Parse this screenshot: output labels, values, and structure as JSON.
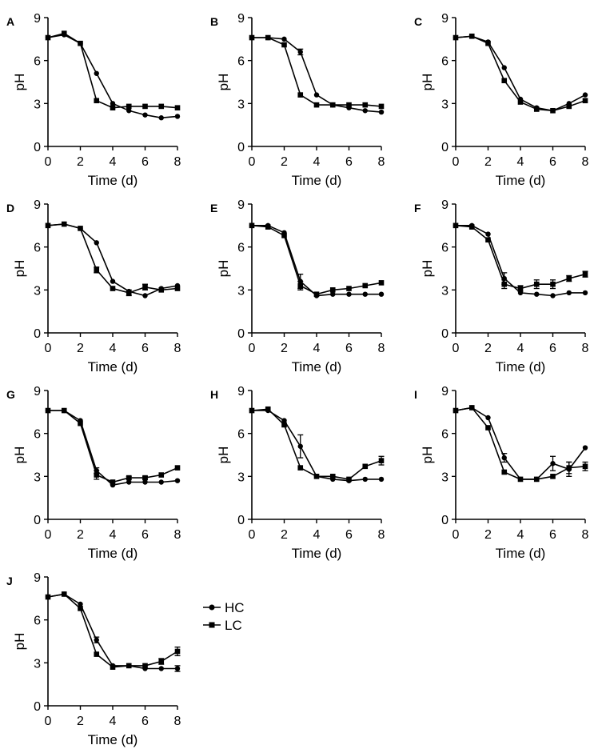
{
  "figure": {
    "legend": [
      {
        "label": "HC",
        "marker": "circle"
      },
      {
        "label": "LC",
        "marker": "square"
      }
    ],
    "line_color": "#000000"
  },
  "chart_data": [
    {
      "panel": "A",
      "type": "line",
      "xlabel": "Time (d)",
      "ylabel": "pH",
      "xlim": [
        0,
        8
      ],
      "ylim": [
        0,
        9
      ],
      "xticks": [
        "0",
        "2",
        "4",
        "6",
        "8"
      ],
      "yticks": [
        "0",
        "3",
        "6",
        "9"
      ],
      "series": [
        {
          "name": "HC",
          "x": [
            0,
            1,
            2,
            3,
            4,
            5,
            6,
            7,
            8
          ],
          "y": [
            7.6,
            7.8,
            7.2,
            5.1,
            3.0,
            2.5,
            2.2,
            2.0,
            2.1
          ],
          "err": [
            0,
            0,
            0,
            0,
            0,
            0,
            0,
            0,
            0
          ]
        },
        {
          "name": "LC",
          "x": [
            0,
            1,
            2,
            3,
            4,
            5,
            6,
            7,
            8
          ],
          "y": [
            7.6,
            7.9,
            7.2,
            3.2,
            2.7,
            2.8,
            2.8,
            2.8,
            2.7
          ],
          "err": [
            0,
            0,
            0,
            0,
            0,
            0,
            0,
            0,
            0
          ]
        }
      ]
    },
    {
      "panel": "B",
      "type": "line",
      "xlabel": "Time (d)",
      "ylabel": "pH",
      "xlim": [
        0,
        8
      ],
      "ylim": [
        0,
        9
      ],
      "xticks": [
        "0",
        "2",
        "4",
        "6",
        "8"
      ],
      "yticks": [
        "0",
        "3",
        "6",
        "9"
      ],
      "series": [
        {
          "name": "HC",
          "x": [
            0,
            1,
            2,
            3,
            4,
            5,
            6,
            7,
            8
          ],
          "y": [
            7.6,
            7.6,
            7.5,
            6.6,
            3.6,
            2.9,
            2.7,
            2.5,
            2.4
          ],
          "err": [
            0,
            0,
            0,
            0.2,
            0,
            0,
            0,
            0,
            0
          ]
        },
        {
          "name": "LC",
          "x": [
            0,
            1,
            2,
            3,
            4,
            5,
            6,
            7,
            8
          ],
          "y": [
            7.6,
            7.6,
            7.1,
            3.6,
            2.9,
            2.9,
            2.9,
            2.9,
            2.8
          ],
          "err": [
            0,
            0,
            0,
            0,
            0,
            0,
            0,
            0,
            0
          ]
        }
      ]
    },
    {
      "panel": "C",
      "type": "line",
      "xlabel": "Time (d)",
      "ylabel": "pH",
      "xlim": [
        0,
        8
      ],
      "ylim": [
        0,
        9
      ],
      "xticks": [
        "0",
        "2",
        "4",
        "6",
        "8"
      ],
      "yticks": [
        "0",
        "3",
        "6",
        "9"
      ],
      "series": [
        {
          "name": "HC",
          "x": [
            0,
            1,
            2,
            3,
            4,
            5,
            6,
            7,
            8
          ],
          "y": [
            7.6,
            7.7,
            7.3,
            5.5,
            3.3,
            2.7,
            2.5,
            3.0,
            3.6
          ],
          "err": [
            0,
            0,
            0,
            0,
            0,
            0,
            0,
            0,
            0
          ]
        },
        {
          "name": "LC",
          "x": [
            0,
            1,
            2,
            3,
            4,
            5,
            6,
            7,
            8
          ],
          "y": [
            7.6,
            7.7,
            7.2,
            4.6,
            3.1,
            2.6,
            2.5,
            2.8,
            3.2
          ],
          "err": [
            0,
            0,
            0,
            0,
            0,
            0,
            0,
            0,
            0
          ]
        }
      ]
    },
    {
      "panel": "D",
      "type": "line",
      "xlabel": "Time (d)",
      "ylabel": "pH",
      "xlim": [
        0,
        8
      ],
      "ylim": [
        0,
        9
      ],
      "xticks": [
        "0",
        "2",
        "4",
        "6",
        "8"
      ],
      "yticks": [
        "0",
        "3",
        "6",
        "9"
      ],
      "series": [
        {
          "name": "HC",
          "x": [
            0,
            1,
            2,
            3,
            4,
            5,
            6,
            7,
            8
          ],
          "y": [
            7.5,
            7.6,
            7.3,
            6.3,
            3.6,
            2.9,
            2.6,
            3.1,
            3.3
          ],
          "err": [
            0,
            0,
            0,
            0,
            0,
            0,
            0,
            0,
            0
          ]
        },
        {
          "name": "LC",
          "x": [
            0,
            1,
            2,
            3,
            4,
            5,
            6,
            7,
            8
          ],
          "y": [
            7.5,
            7.6,
            7.3,
            4.4,
            3.1,
            2.8,
            3.2,
            3.0,
            3.1
          ],
          "err": [
            0,
            0,
            0,
            0.2,
            0,
            0.2,
            0.2,
            0,
            0
          ]
        }
      ]
    },
    {
      "panel": "E",
      "type": "line",
      "xlabel": "Time (d)",
      "ylabel": "pH",
      "xlim": [
        0,
        8
      ],
      "ylim": [
        0,
        9
      ],
      "xticks": [
        "0",
        "2",
        "4",
        "6",
        "8"
      ],
      "yticks": [
        "0",
        "3",
        "6",
        "9"
      ],
      "series": [
        {
          "name": "HC",
          "x": [
            0,
            1,
            2,
            3,
            4,
            5,
            6,
            7,
            8
          ],
          "y": [
            7.5,
            7.5,
            7.0,
            3.6,
            2.6,
            2.7,
            2.7,
            2.7,
            2.7
          ],
          "err": [
            0,
            0,
            0,
            0.5,
            0,
            0,
            0,
            0,
            0
          ]
        },
        {
          "name": "LC",
          "x": [
            0,
            1,
            2,
            3,
            4,
            5,
            6,
            7,
            8
          ],
          "y": [
            7.5,
            7.4,
            6.8,
            3.3,
            2.7,
            3.0,
            3.1,
            3.3,
            3.5
          ],
          "err": [
            0,
            0,
            0,
            0.3,
            0,
            0,
            0,
            0,
            0
          ]
        }
      ]
    },
    {
      "panel": "F",
      "type": "line",
      "xlabel": "Time (d)",
      "ylabel": "pH",
      "xlim": [
        0,
        8
      ],
      "ylim": [
        0,
        9
      ],
      "xticks": [
        "0",
        "2",
        "4",
        "6",
        "8"
      ],
      "yticks": [
        "0",
        "3",
        "6",
        "9"
      ],
      "series": [
        {
          "name": "HC",
          "x": [
            0,
            1,
            2,
            3,
            4,
            5,
            6,
            7,
            8
          ],
          "y": [
            7.5,
            7.5,
            6.9,
            3.8,
            2.8,
            2.7,
            2.6,
            2.8,
            2.8
          ],
          "err": [
            0,
            0,
            0,
            0.4,
            0,
            0,
            0,
            0,
            0
          ]
        },
        {
          "name": "LC",
          "x": [
            0,
            1,
            2,
            3,
            4,
            5,
            6,
            7,
            8
          ],
          "y": [
            7.5,
            7.4,
            6.5,
            3.4,
            3.1,
            3.4,
            3.4,
            3.8,
            4.1
          ],
          "err": [
            0,
            0,
            0,
            0.3,
            0.2,
            0.3,
            0.3,
            0.2,
            0.2
          ]
        }
      ]
    },
    {
      "panel": "G",
      "type": "line",
      "xlabel": "Time (d)",
      "ylabel": "pH",
      "xlim": [
        0,
        8
      ],
      "ylim": [
        0,
        9
      ],
      "xticks": [
        "0",
        "2",
        "4",
        "6",
        "8"
      ],
      "yticks": [
        "0",
        "3",
        "6",
        "9"
      ],
      "series": [
        {
          "name": "HC",
          "x": [
            0,
            1,
            2,
            3,
            4,
            5,
            6,
            7,
            8
          ],
          "y": [
            7.6,
            7.6,
            6.9,
            3.4,
            2.4,
            2.6,
            2.6,
            2.6,
            2.7
          ],
          "err": [
            0,
            0,
            0,
            0.2,
            0,
            0,
            0,
            0,
            0
          ]
        },
        {
          "name": "LC",
          "x": [
            0,
            1,
            2,
            3,
            4,
            5,
            6,
            7,
            8
          ],
          "y": [
            7.6,
            7.6,
            6.7,
            3.1,
            2.6,
            2.9,
            2.9,
            3.1,
            3.6
          ],
          "err": [
            0,
            0,
            0,
            0.3,
            0,
            0.1,
            0.1,
            0,
            0
          ]
        }
      ]
    },
    {
      "panel": "H",
      "type": "line",
      "xlabel": "Time (d)",
      "ylabel": "pH",
      "xlim": [
        0,
        8
      ],
      "ylim": [
        0,
        9
      ],
      "xticks": [
        "0",
        "2",
        "4",
        "6",
        "8"
      ],
      "yticks": [
        "0",
        "3",
        "6",
        "9"
      ],
      "series": [
        {
          "name": "HC",
          "x": [
            0,
            1,
            2,
            3,
            4,
            5,
            6,
            7,
            8
          ],
          "y": [
            7.6,
            7.6,
            6.9,
            5.1,
            3.0,
            2.8,
            2.7,
            2.8,
            2.8
          ],
          "err": [
            0,
            0,
            0,
            0.8,
            0,
            0,
            0,
            0,
            0
          ]
        },
        {
          "name": "LC",
          "x": [
            0,
            1,
            2,
            3,
            4,
            5,
            6,
            7,
            8
          ],
          "y": [
            7.6,
            7.7,
            6.6,
            3.6,
            3.0,
            3.0,
            2.8,
            3.7,
            4.1
          ],
          "err": [
            0,
            0,
            0,
            0,
            0,
            0,
            0,
            0,
            0.3
          ]
        }
      ]
    },
    {
      "panel": "I",
      "type": "line",
      "xlabel": "Time (d)",
      "ylabel": "pH",
      "xlim": [
        0,
        8
      ],
      "ylim": [
        0,
        9
      ],
      "xticks": [
        "0",
        "2",
        "4",
        "6",
        "8"
      ],
      "yticks": [
        "0",
        "3",
        "6",
        "9"
      ],
      "series": [
        {
          "name": "HC",
          "x": [
            0,
            1,
            2,
            3,
            4,
            5,
            6,
            7,
            8
          ],
          "y": [
            7.6,
            7.8,
            7.1,
            4.3,
            2.8,
            2.8,
            3.9,
            3.5,
            5.0
          ],
          "err": [
            0,
            0,
            0,
            0.3,
            0,
            0,
            0.5,
            0.5,
            0
          ]
        },
        {
          "name": "LC",
          "x": [
            0,
            1,
            2,
            3,
            4,
            5,
            6,
            7,
            8
          ],
          "y": [
            7.6,
            7.8,
            6.4,
            3.3,
            2.8,
            2.8,
            3.0,
            3.6,
            3.7
          ],
          "err": [
            0,
            0,
            0,
            0,
            0,
            0,
            0,
            0.4,
            0.3
          ]
        }
      ]
    },
    {
      "panel": "J",
      "type": "line",
      "xlabel": "Time (d)",
      "ylabel": "pH",
      "xlim": [
        0,
        8
      ],
      "ylim": [
        0,
        9
      ],
      "xticks": [
        "0",
        "2",
        "4",
        "6",
        "8"
      ],
      "yticks": [
        "0",
        "3",
        "6",
        "9"
      ],
      "series": [
        {
          "name": "HC",
          "x": [
            0,
            1,
            2,
            3,
            4,
            5,
            6,
            7,
            8
          ],
          "y": [
            7.6,
            7.8,
            7.1,
            4.6,
            2.8,
            2.8,
            2.6,
            2.6,
            2.6
          ],
          "err": [
            0,
            0,
            0,
            0.2,
            0,
            0,
            0,
            0,
            0.2
          ]
        },
        {
          "name": "LC",
          "x": [
            0,
            1,
            2,
            3,
            4,
            5,
            6,
            7,
            8
          ],
          "y": [
            7.6,
            7.8,
            6.8,
            3.6,
            2.7,
            2.8,
            2.8,
            3.1,
            3.8
          ],
          "err": [
            0,
            0,
            0,
            0,
            0,
            0,
            0,
            0.2,
            0.3
          ]
        }
      ]
    }
  ]
}
